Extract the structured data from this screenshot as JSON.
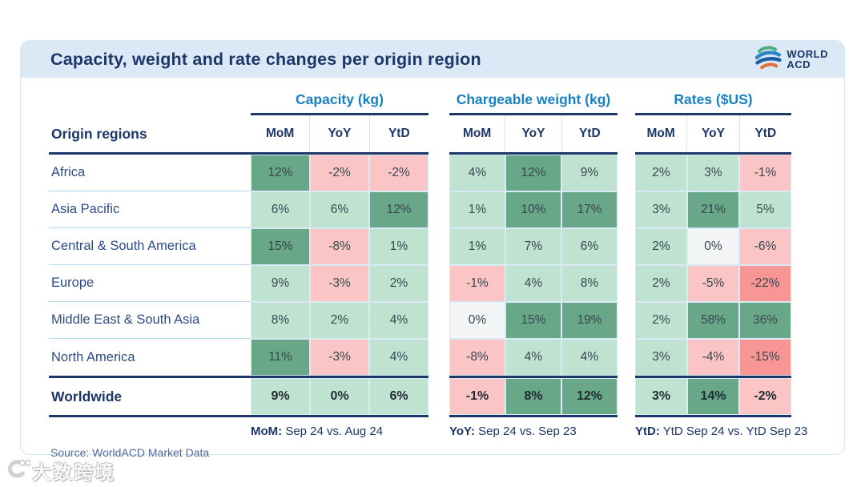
{
  "title": "Capacity, weight and rate changes per origin region",
  "logo": {
    "line1": "WORLD",
    "line2": "ACD"
  },
  "source": "Source: WorldACD Market Data",
  "watermark": {
    "text": "大数跨境"
  },
  "footnotes": [
    {
      "label": "MoM:",
      "text": "Sep 24 vs. Aug 24"
    },
    {
      "label": "YoY:",
      "text": "Sep 24 vs. Sep 23"
    },
    {
      "label": "YtD:",
      "text": "YtD Sep 24 vs. YtD Sep 23"
    }
  ],
  "chart_data": {
    "type": "table",
    "title": "Capacity, weight and rate changes per origin region",
    "row_header": "Origin regions",
    "groups": [
      {
        "label": "Capacity (kg)",
        "key": "capacity"
      },
      {
        "label": "Chargeable weight (kg)",
        "key": "chargeable_weight"
      },
      {
        "label": "Rates ($US)",
        "key": "rates"
      }
    ],
    "sub_columns": [
      "MoM",
      "YoY",
      "YtD"
    ],
    "color_legend": {
      "g": "#c0e3d1",
      "G": "#68a787",
      "r": "#fbc5c5",
      "R": "#f89695",
      "w": "#f4f5f6"
    },
    "rows": [
      {
        "region": "Africa",
        "capacity": [
          {
            "v": "12%",
            "c": "G"
          },
          {
            "v": "-2%",
            "c": "r"
          },
          {
            "v": "-2%",
            "c": "r"
          }
        ],
        "chargeable_weight": [
          {
            "v": "4%",
            "c": "g"
          },
          {
            "v": "12%",
            "c": "G"
          },
          {
            "v": "9%",
            "c": "g"
          }
        ],
        "rates": [
          {
            "v": "2%",
            "c": "g"
          },
          {
            "v": "3%",
            "c": "g"
          },
          {
            "v": "-1%",
            "c": "r"
          }
        ]
      },
      {
        "region": "Asia Pacific",
        "capacity": [
          {
            "v": "6%",
            "c": "g"
          },
          {
            "v": "6%",
            "c": "g"
          },
          {
            "v": "12%",
            "c": "G"
          }
        ],
        "chargeable_weight": [
          {
            "v": "1%",
            "c": "g"
          },
          {
            "v": "10%",
            "c": "G"
          },
          {
            "v": "17%",
            "c": "G"
          }
        ],
        "rates": [
          {
            "v": "3%",
            "c": "g"
          },
          {
            "v": "21%",
            "c": "G"
          },
          {
            "v": "5%",
            "c": "g"
          }
        ]
      },
      {
        "region": "Central & South America",
        "capacity": [
          {
            "v": "15%",
            "c": "G"
          },
          {
            "v": "-8%",
            "c": "r"
          },
          {
            "v": "1%",
            "c": "g"
          }
        ],
        "chargeable_weight": [
          {
            "v": "1%",
            "c": "g"
          },
          {
            "v": "7%",
            "c": "g"
          },
          {
            "v": "6%",
            "c": "g"
          }
        ],
        "rates": [
          {
            "v": "2%",
            "c": "g"
          },
          {
            "v": "0%",
            "c": "w"
          },
          {
            "v": "-6%",
            "c": "r"
          }
        ]
      },
      {
        "region": "Europe",
        "capacity": [
          {
            "v": "9%",
            "c": "g"
          },
          {
            "v": "-3%",
            "c": "r"
          },
          {
            "v": "2%",
            "c": "g"
          }
        ],
        "chargeable_weight": [
          {
            "v": "-1%",
            "c": "r"
          },
          {
            "v": "4%",
            "c": "g"
          },
          {
            "v": "8%",
            "c": "g"
          }
        ],
        "rates": [
          {
            "v": "2%",
            "c": "g"
          },
          {
            "v": "-5%",
            "c": "r"
          },
          {
            "v": "-22%",
            "c": "R"
          }
        ]
      },
      {
        "region": "Middle East & South Asia",
        "capacity": [
          {
            "v": "8%",
            "c": "g"
          },
          {
            "v": "2%",
            "c": "g"
          },
          {
            "v": "4%",
            "c": "g"
          }
        ],
        "chargeable_weight": [
          {
            "v": "0%",
            "c": "w"
          },
          {
            "v": "15%",
            "c": "G"
          },
          {
            "v": "19%",
            "c": "G"
          }
        ],
        "rates": [
          {
            "v": "2%",
            "c": "g"
          },
          {
            "v": "58%",
            "c": "G"
          },
          {
            "v": "36%",
            "c": "G"
          }
        ]
      },
      {
        "region": "North America",
        "capacity": [
          {
            "v": "11%",
            "c": "G"
          },
          {
            "v": "-3%",
            "c": "r"
          },
          {
            "v": "4%",
            "c": "g"
          }
        ],
        "chargeable_weight": [
          {
            "v": "-8%",
            "c": "r"
          },
          {
            "v": "4%",
            "c": "g"
          },
          {
            "v": "4%",
            "c": "g"
          }
        ],
        "rates": [
          {
            "v": "3%",
            "c": "g"
          },
          {
            "v": "-4%",
            "c": "r"
          },
          {
            "v": "-15%",
            "c": "R"
          }
        ]
      },
      {
        "region": "Worldwide",
        "capacity": [
          {
            "v": "9%",
            "c": "g"
          },
          {
            "v": "0%",
            "c": "g"
          },
          {
            "v": "6%",
            "c": "g"
          }
        ],
        "chargeable_weight": [
          {
            "v": "-1%",
            "c": "r"
          },
          {
            "v": "8%",
            "c": "G"
          },
          {
            "v": "12%",
            "c": "G"
          }
        ],
        "rates": [
          {
            "v": "3%",
            "c": "g"
          },
          {
            "v": "14%",
            "c": "G"
          },
          {
            "v": "-2%",
            "c": "r"
          }
        ]
      }
    ]
  }
}
